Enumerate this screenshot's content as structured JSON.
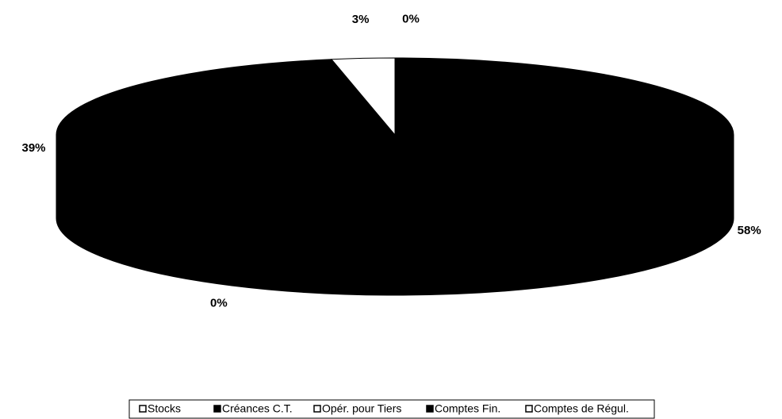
{
  "chart_data": {
    "type": "pie",
    "three_d": true,
    "categories": [
      "Stocks",
      "Créances C.T.",
      "Opér. pour Tiers",
      "Comptes Fin.",
      "Comptes de Régul."
    ],
    "values": [
      0,
      58,
      0,
      39,
      3
    ],
    "value_labels": [
      "0%",
      "58%",
      "0%",
      "39%",
      "3%"
    ],
    "colors": [
      "#ffffff",
      "#000000",
      "#ffffff",
      "#000000",
      "#ffffff"
    ],
    "legend": "bottom"
  }
}
